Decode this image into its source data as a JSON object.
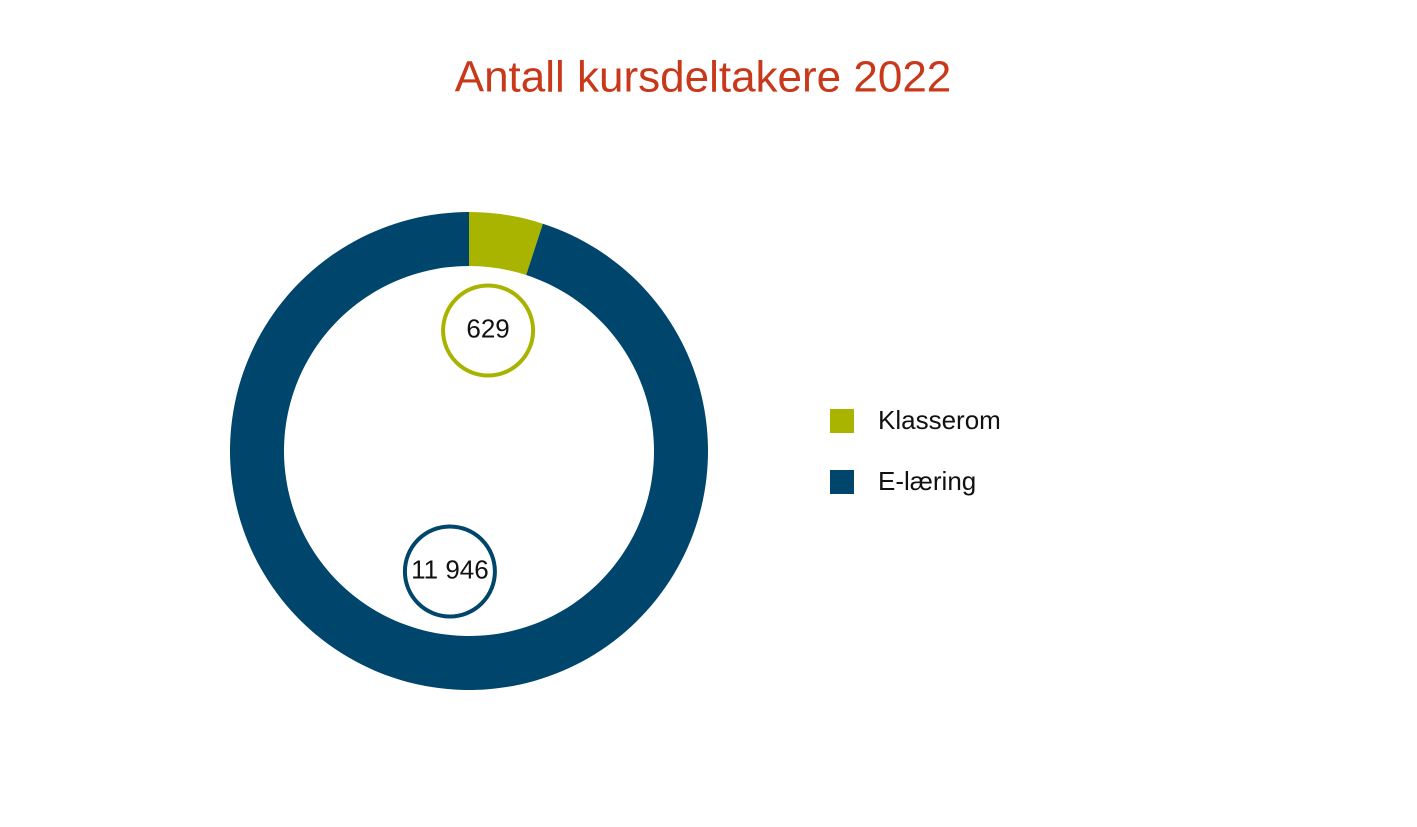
{
  "chart_data": {
    "type": "donut",
    "title": "Antall kursdeltakere 2022",
    "categories": [
      "Klasserom",
      "E-læring"
    ],
    "values": [
      629,
      11946
    ],
    "value_labels": [
      "629",
      "11 946"
    ],
    "colors": [
      "#a8b400",
      "#00456b"
    ],
    "legend": "right"
  }
}
